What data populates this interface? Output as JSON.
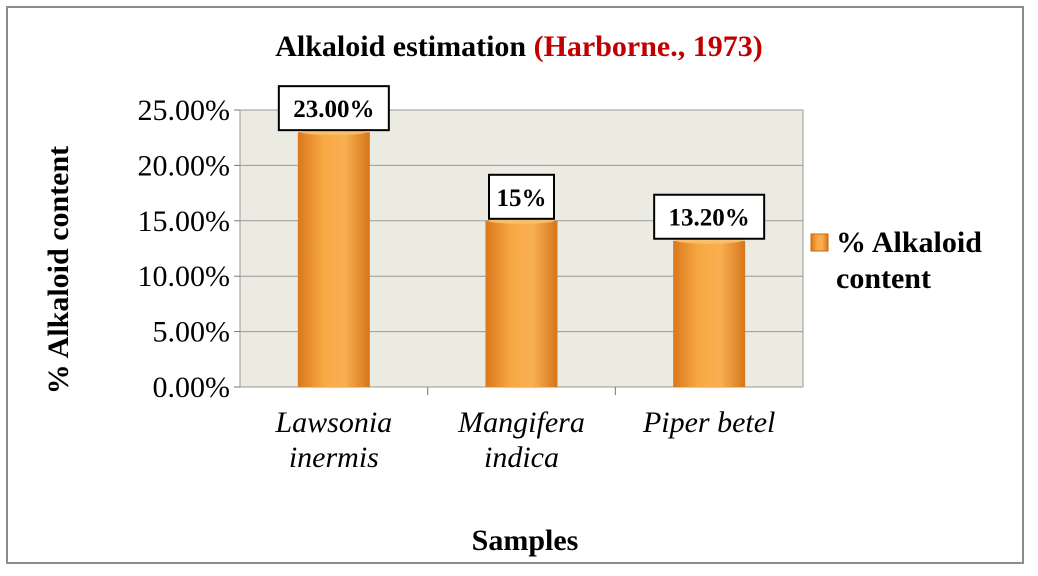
{
  "chart_data": {
    "type": "bar",
    "title": "Alkaloid estimation",
    "title_reference": "(Harborne., 1973)",
    "xlabel": "Samples",
    "ylabel": "% Alkaloid content",
    "ylim": [
      0,
      25
    ],
    "y_ticks": [
      "0.00%",
      "5.00%",
      "10.00%",
      "15.00%",
      "20.00%",
      "25.00%"
    ],
    "categories": [
      [
        "Lawsonia",
        "inermis"
      ],
      [
        "Mangifera",
        "indica"
      ],
      [
        "Piper betel"
      ]
    ],
    "series": [
      {
        "name": "% Alkaloid content",
        "legend_lines": [
          "% Alkaloid",
          "content"
        ],
        "values": [
          23.0,
          15.0,
          13.2
        ],
        "data_labels": [
          "23.00%",
          "15%",
          "13.20%"
        ],
        "color": "#f5a03a"
      }
    ],
    "grid": true,
    "legend_position": "right",
    "plot_background": "#ecebe2"
  }
}
